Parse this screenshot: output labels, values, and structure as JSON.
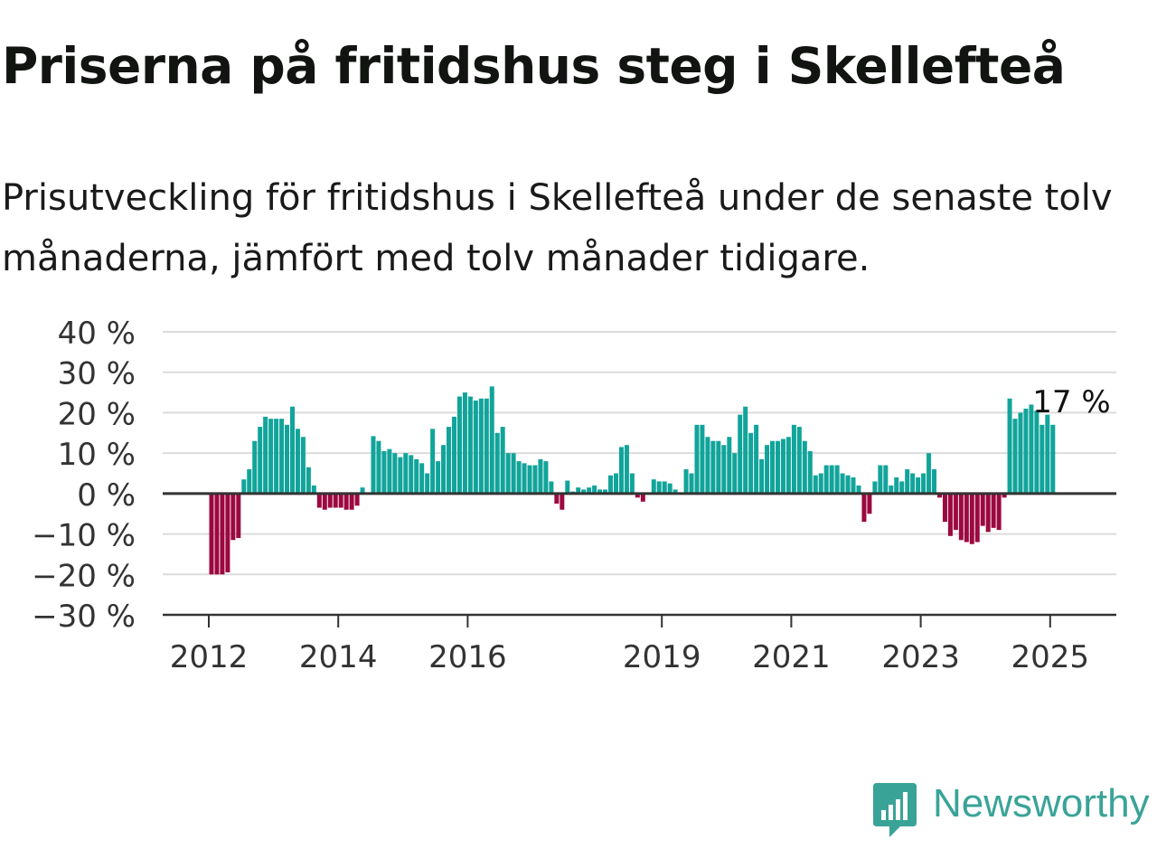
{
  "title": "Priserna på fritidshus steg i Skellefteå",
  "subtitle": "Prisutveckling för fritidshus i Skellefteå under de senaste tolv månaderna, jämfört med tolv månader tidigare.",
  "brand": {
    "name": "Newsworthy",
    "icon": "newsworthy-logo-icon",
    "color": "#3aa398"
  },
  "colors": {
    "positive": "#11a49a",
    "negative": "#9c0840",
    "grid": "#dcdcdc",
    "axis": "#333333",
    "text": "#333333"
  },
  "chart_data": {
    "type": "bar",
    "title": "Priserna på fritidshus steg i Skellefteå",
    "xlabel": "",
    "ylabel": "",
    "ylim": [
      -30,
      40
    ],
    "grid": true,
    "y_ticks": [
      {
        "value": 40,
        "label": "40 %"
      },
      {
        "value": 30,
        "label": "30 %"
      },
      {
        "value": 20,
        "label": "20 %"
      },
      {
        "value": 10,
        "label": "10 %"
      },
      {
        "value": 0,
        "label": "0 %"
      },
      {
        "value": -10,
        "label": "−10 %"
      },
      {
        "value": -20,
        "label": "−20 %"
      },
      {
        "value": -30,
        "label": "−30 %"
      }
    ],
    "x_ticks": [
      "2012",
      "2014",
      "2016",
      "2019",
      "2021",
      "2023",
      "2025"
    ],
    "start": "2012-01",
    "end": "2025-05",
    "values": [
      -20,
      -20,
      -20,
      -19.5,
      -11.5,
      -11,
      3.5,
      6,
      13,
      16.5,
      19,
      18.5,
      18.5,
      18.5,
      17,
      21.5,
      16,
      14,
      6.5,
      2,
      -3.5,
      -4,
      -3.5,
      -3.5,
      -3.5,
      -4,
      -4,
      -3,
      1.5,
      null,
      14.2,
      13,
      10.5,
      11,
      10,
      9,
      10,
      9.5,
      8.5,
      7.5,
      5,
      16,
      8,
      12,
      16.5,
      19,
      24,
      25,
      24,
      23,
      23.5,
      23.5,
      26.5,
      15,
      16.5,
      10,
      10,
      8,
      7.5,
      7,
      7,
      8.5,
      8,
      3,
      -2.5,
      -4,
      3.2,
      0.5,
      1.5,
      1,
      1.5,
      2,
      1,
      1,
      4.5,
      5,
      11.5,
      12,
      5,
      -1,
      -2,
      null,
      3.5,
      3,
      3,
      2.5,
      1,
      null,
      6,
      5,
      17,
      17,
      14,
      13,
      13,
      12,
      14,
      10,
      19.5,
      21.5,
      15,
      17,
      8.5,
      12,
      13,
      13,
      13.5,
      14,
      17,
      16.5,
      13,
      10.5,
      4.5,
      5,
      7,
      7,
      7,
      5,
      4.5,
      4,
      2,
      -7,
      -5,
      3,
      7,
      7,
      2,
      4,
      3,
      6,
      5,
      4,
      5,
      10,
      6,
      -1,
      -7,
      -10.5,
      -9,
      -11.5,
      -12,
      -12.5,
      -12,
      -8,
      -9.5,
      -8.5,
      -9,
      -1,
      23.5,
      18.5,
      20,
      21,
      22,
      20.5,
      17,
      19.5,
      17
    ],
    "annotation": {
      "text": "17 %",
      "value": 17,
      "date": "2025-05"
    }
  }
}
